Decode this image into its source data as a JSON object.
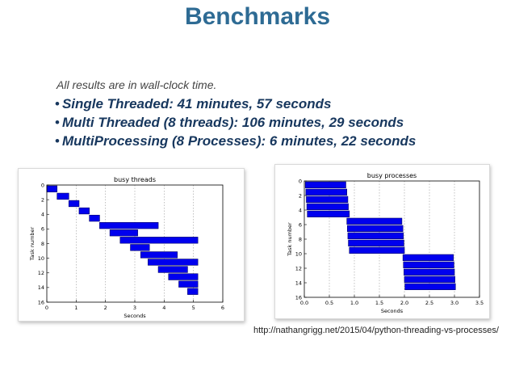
{
  "slide": {
    "title": "Benchmarks",
    "note": "All results are in wall-clock time.",
    "bullets": [
      "Single Threaded: 41 minutes, 57 seconds",
      "Multi Threaded (8 threads): 106 minutes, 29 seconds",
      "MultiProcessing (8 Processes): 6 minutes, 22 seconds"
    ],
    "source": "http://nathangrigg.net/2015/04/python-threading-vs-processes/"
  },
  "colors": {
    "title": "#2e6b94",
    "bar": "#0000ee",
    "bar_edge": "#000066"
  },
  "chart_data": [
    {
      "type": "bar",
      "orientation": "horizontal-gantt",
      "title": "busy threads",
      "xlabel": "Seconds",
      "ylabel": "Task number",
      "xlim": [
        0,
        6
      ],
      "ylim": [
        16,
        0
      ],
      "xticks": [
        0,
        1,
        2,
        3,
        4,
        5,
        6
      ],
      "yticks": [
        0,
        2,
        4,
        6,
        8,
        10,
        12,
        14,
        16
      ],
      "grid": true,
      "series": [
        {
          "tasks": [
            {
              "task": 0,
              "start": 0.0,
              "end": 0.35
            },
            {
              "task": 1,
              "start": 0.35,
              "end": 0.75
            },
            {
              "task": 2,
              "start": 0.75,
              "end": 1.1
            },
            {
              "task": 3,
              "start": 1.1,
              "end": 1.45
            },
            {
              "task": 4,
              "start": 1.45,
              "end": 1.8
            },
            {
              "task": 5,
              "start": 1.8,
              "end": 3.8
            },
            {
              "task": 6,
              "start": 2.15,
              "end": 3.1
            },
            {
              "task": 7,
              "start": 2.5,
              "end": 5.15
            },
            {
              "task": 8,
              "start": 2.85,
              "end": 3.5
            },
            {
              "task": 9,
              "start": 3.2,
              "end": 4.45
            },
            {
              "task": 10,
              "start": 3.45,
              "end": 5.15
            },
            {
              "task": 11,
              "start": 3.8,
              "end": 4.8
            },
            {
              "task": 12,
              "start": 4.15,
              "end": 5.15
            },
            {
              "task": 13,
              "start": 4.5,
              "end": 5.15
            },
            {
              "task": 14,
              "start": 4.8,
              "end": 5.15
            }
          ]
        }
      ]
    },
    {
      "type": "bar",
      "orientation": "horizontal-gantt",
      "title": "busy processes",
      "xlabel": "Seconds",
      "ylabel": "Task number",
      "xlim": [
        0,
        3.5
      ],
      "ylim": [
        16,
        0
      ],
      "xticks": [
        "0.0",
        "0.5",
        "1.0",
        "1.5",
        "2.0",
        "2.5",
        "3.0",
        "3.5"
      ],
      "yticks": [
        0,
        2,
        4,
        6,
        8,
        10,
        12,
        14,
        16
      ],
      "grid": true,
      "series": [
        {
          "tasks": [
            {
              "task": 0,
              "start": 0.02,
              "end": 0.83
            },
            {
              "task": 1,
              "start": 0.03,
              "end": 0.85
            },
            {
              "task": 2,
              "start": 0.04,
              "end": 0.87
            },
            {
              "task": 3,
              "start": 0.05,
              "end": 0.88
            },
            {
              "task": 4,
              "start": 0.06,
              "end": 0.9
            },
            {
              "task": 5,
              "start": 0.85,
              "end": 1.95
            },
            {
              "task": 6,
              "start": 0.86,
              "end": 1.97
            },
            {
              "task": 7,
              "start": 0.87,
              "end": 1.98
            },
            {
              "task": 8,
              "start": 0.88,
              "end": 1.99
            },
            {
              "task": 9,
              "start": 0.9,
              "end": 2.0
            },
            {
              "task": 10,
              "start": 1.97,
              "end": 2.98
            },
            {
              "task": 11,
              "start": 1.98,
              "end": 2.99
            },
            {
              "task": 12,
              "start": 1.99,
              "end": 3.0
            },
            {
              "task": 13,
              "start": 2.0,
              "end": 3.01
            },
            {
              "task": 14,
              "start": 2.01,
              "end": 3.02
            }
          ]
        }
      ]
    }
  ]
}
